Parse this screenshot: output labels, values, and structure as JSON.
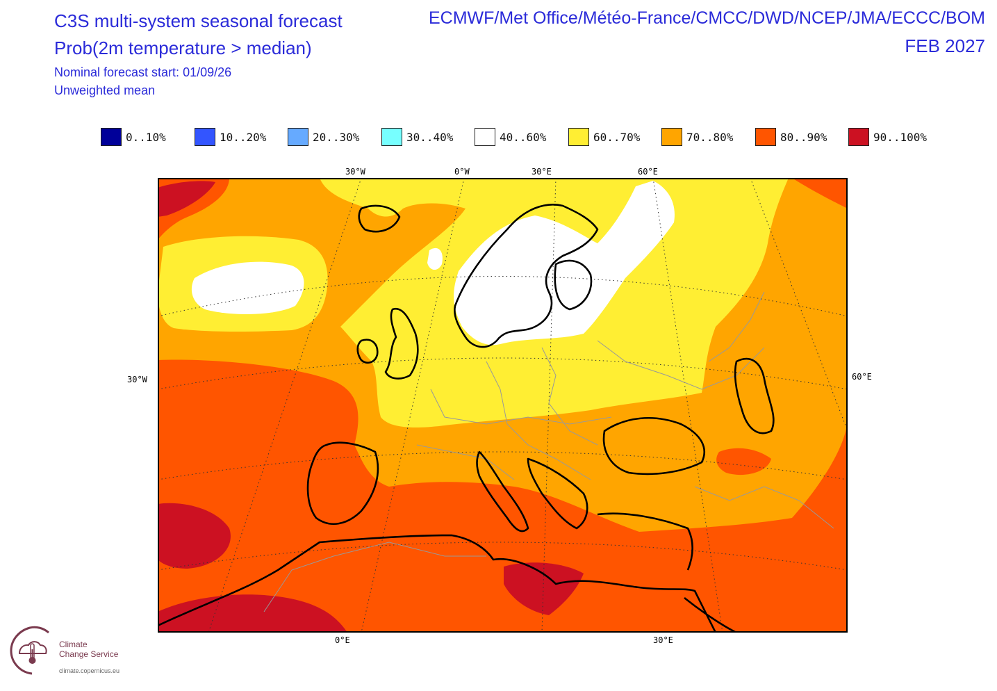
{
  "header": {
    "title_left_line1": "C3S multi-system seasonal forecast",
    "title_left_line2": "Prob(2m temperature > median)",
    "title_right_line1": "ECMWF/Met Office/Météo-France/CMCC/DWD/NCEP/JMA/ECCC/BOM",
    "title_right_line2": "FEB 2027",
    "forecast_start": "Nominal forecast start: 01/09/26",
    "weighting": "Unweighted mean"
  },
  "legend": [
    {
      "label": "0..10%",
      "color": "#000099"
    },
    {
      "label": "10..20%",
      "color": "#3355ff"
    },
    {
      "label": "20..30%",
      "color": "#66aaff"
    },
    {
      "label": "30..40%",
      "color": "#77ffff"
    },
    {
      "label": "40..60%",
      "color": "#ffffff"
    },
    {
      "label": "60..70%",
      "color": "#ffee33"
    },
    {
      "label": "70..80%",
      "color": "#ffa500"
    },
    {
      "label": "80..90%",
      "color": "#ff5500"
    },
    {
      "label": "90..100%",
      "color": "#cc1122"
    }
  ],
  "axes": {
    "top": [
      "30°W",
      "0°W",
      "30°E",
      "60°E"
    ],
    "left": "30°W",
    "right": "60°E",
    "bottom": [
      "0°E",
      "30°E"
    ]
  },
  "logo": {
    "line1": "Climate",
    "line2": "Change Service",
    "url": "climate.copernicus.eu"
  }
}
